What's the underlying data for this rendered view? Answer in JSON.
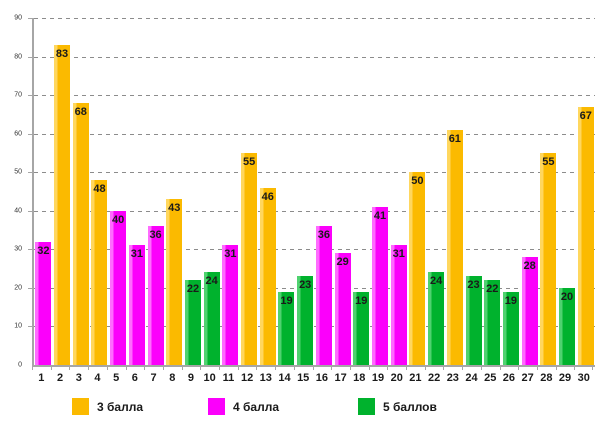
{
  "chart_data": {
    "type": "bar",
    "title": "",
    "xlabel": "",
    "ylabel": "",
    "ylim": [
      0,
      90
    ],
    "y_ticks": [
      0,
      10,
      20,
      30,
      40,
      50,
      60,
      70,
      80,
      90
    ],
    "grid": "horizontal-dashed",
    "legend_position": "bottom",
    "categories": [
      "1",
      "2",
      "3",
      "4",
      "5",
      "6",
      "7",
      "8",
      "9",
      "10",
      "11",
      "12",
      "13",
      "14",
      "15",
      "16",
      "17",
      "18",
      "19",
      "20",
      "21",
      "22",
      "23",
      "24",
      "25",
      "26",
      "27",
      "28",
      "29",
      "30"
    ],
    "bars": [
      {
        "x": "1",
        "value": 32,
        "series": "4 балла"
      },
      {
        "x": "2",
        "value": 83,
        "series": "3 балла"
      },
      {
        "x": "3",
        "value": 68,
        "series": "3 балла"
      },
      {
        "x": "4",
        "value": 48,
        "series": "3 балла"
      },
      {
        "x": "5",
        "value": 40,
        "series": "4 балла"
      },
      {
        "x": "6",
        "value": 31,
        "series": "4 балла"
      },
      {
        "x": "7",
        "value": 36,
        "series": "4 балла"
      },
      {
        "x": "8",
        "value": 43,
        "series": "3 балла"
      },
      {
        "x": "9",
        "value": 22,
        "series": "5 баллов"
      },
      {
        "x": "10",
        "value": 24,
        "series": "5 баллов"
      },
      {
        "x": "11",
        "value": 31,
        "series": "4 балла"
      },
      {
        "x": "12",
        "value": 55,
        "series": "3 балла"
      },
      {
        "x": "13",
        "value": 46,
        "series": "3 балла"
      },
      {
        "x": "14",
        "value": 19,
        "series": "5 баллов"
      },
      {
        "x": "15",
        "value": 23,
        "series": "5 баллов"
      },
      {
        "x": "16",
        "value": 36,
        "series": "4 балла"
      },
      {
        "x": "17",
        "value": 29,
        "series": "4 балла"
      },
      {
        "x": "18",
        "value": 19,
        "series": "5 баллов"
      },
      {
        "x": "19",
        "value": 41,
        "series": "4 балла"
      },
      {
        "x": "20",
        "value": 31,
        "series": "4 балла"
      },
      {
        "x": "21",
        "value": 50,
        "series": "3 балла"
      },
      {
        "x": "22",
        "value": 24,
        "series": "5 баллов"
      },
      {
        "x": "23",
        "value": 61,
        "series": "3 балла"
      },
      {
        "x": "24",
        "value": 23,
        "series": "5 баллов"
      },
      {
        "x": "25",
        "value": 22,
        "series": "5 баллов"
      },
      {
        "x": "26",
        "value": 19,
        "series": "5 баллов"
      },
      {
        "x": "27",
        "value": 28,
        "series": "4 балла"
      },
      {
        "x": "28",
        "value": 55,
        "series": "3 балла"
      },
      {
        "x": "29",
        "value": 20,
        "series": "5 баллов"
      },
      {
        "x": "30",
        "value": 67,
        "series": "3 балла"
      }
    ],
    "series_colors": {
      "3 балла": "#FBBA00",
      "4 балла": "#FB00FB",
      "5 баллов": "#00B22D"
    },
    "series_highlight_colors": {
      "3 балла": "#FFD75E",
      "4 балла": "#FF6BFF",
      "5 баллов": "#4FD26F"
    }
  },
  "legend": {
    "items": [
      {
        "label": "3 балла",
        "color": "#FBBA00"
      },
      {
        "label": "4 балла",
        "color": "#FB00FB"
      },
      {
        "label": "5 баллов",
        "color": "#00B22D"
      }
    ]
  }
}
